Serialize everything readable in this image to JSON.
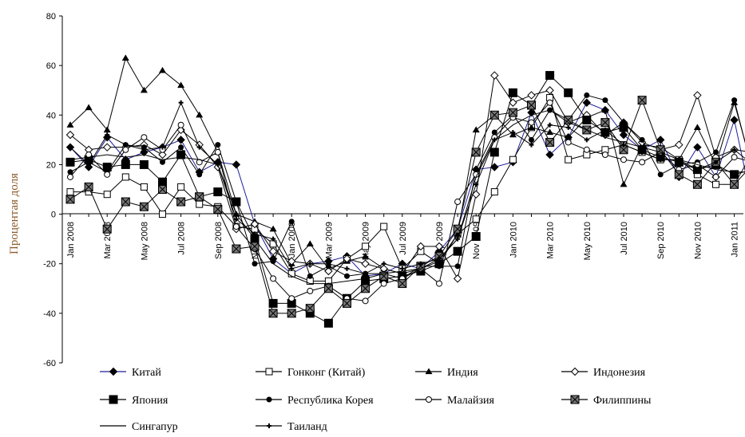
{
  "chart_data": {
    "type": "line",
    "ylabel": "Процентая доля",
    "ylim": [
      -60,
      80
    ],
    "yticks": [
      "80",
      "60",
      "40",
      "20",
      "0",
      "-20",
      "-40",
      "-60"
    ],
    "x": [
      "Jan 2008",
      "Feb 2008",
      "Mar 2008",
      "Apr 2008",
      "May 2008",
      "Jun 2008",
      "Jul 2008",
      "Aug 2008",
      "Sep 2008",
      "Oct 2008",
      "Nov 2008",
      "Dec 2008",
      "Jan 2009",
      "Feb 2009",
      "Mar 2009",
      "Apr 2009",
      "May 2009",
      "Jun 2009",
      "Jul 2009",
      "Aug 2009",
      "Sep 2009",
      "Oct 2009",
      "Nov 2009",
      "Dec 2009",
      "Jan 2010",
      "Feb 2010",
      "Mar 2010",
      "Apr 2010",
      "May 2010",
      "Jun 2010",
      "Jul 2010",
      "Aug 2010",
      "Sep 2010",
      "Oct 2010",
      "Nov 2010",
      "Dec 2010",
      "Jan 2011",
      "Feb 2011"
    ],
    "xticks": [
      "Jan 2008",
      "Mar 2008",
      "May 2008",
      "Jul 2008",
      "Sep 2008",
      "Nov 2008",
      "Jan 2009",
      "Mar 2009",
      "May 2009",
      "Jul 2009",
      "Sep 2009",
      "Nov 2009",
      "Jan 2010",
      "Mar 2010",
      "May 2010",
      "Jul 2010",
      "Sep 2010",
      "Nov 2010",
      "Jan 2011"
    ],
    "series": [
      {
        "name": "Китай",
        "color": "#1f1f99",
        "marker": "diamond-filled",
        "values": [
          27,
          19,
          31,
          22,
          25,
          27,
          30,
          17,
          21,
          20,
          -4,
          -18,
          -24,
          -20,
          -19,
          -17,
          -25,
          -24,
          -20,
          -22,
          -15,
          -6,
          18,
          19,
          21,
          41,
          24,
          31,
          45,
          42,
          32,
          26,
          30,
          15,
          27,
          15,
          38,
          3
        ]
      },
      {
        "name": "Гонконг (Китай)",
        "color": "#000000",
        "marker": "square-open",
        "values": [
          9,
          9,
          8,
          15,
          11,
          0,
          11,
          4,
          3,
          -5,
          -6,
          -12,
          -24,
          -27,
          -27,
          -18,
          -13,
          -5,
          -22,
          -15,
          -20,
          -8,
          -2,
          9,
          22,
          35,
          47,
          22,
          24,
          26,
          28,
          25,
          22,
          22,
          16,
          12,
          12,
          25
        ]
      },
      {
        "name": "Индия",
        "color": "#000000",
        "marker": "triangle-filled",
        "values": [
          36,
          43,
          34,
          63,
          50,
          58,
          52,
          40,
          25,
          0,
          -3,
          -6,
          -20,
          -12,
          -22,
          -19,
          -17,
          -22,
          -24,
          -22,
          -19,
          -8,
          34,
          40,
          32,
          35,
          33,
          31,
          39,
          42,
          12,
          28,
          27,
          22,
          35,
          20,
          45,
          18
        ]
      },
      {
        "name": "Индонезия",
        "color": "#000000",
        "marker": "diamond-open",
        "values": [
          32,
          26,
          27,
          27,
          28,
          24,
          34,
          28,
          19,
          -6,
          -4,
          -15,
          -19,
          -20,
          -23,
          -18,
          -20,
          -22,
          -24,
          -13,
          -13,
          -26,
          8,
          56,
          45,
          48,
          50,
          37,
          40,
          32,
          37,
          29,
          26,
          28,
          48,
          23,
          26,
          25
        ]
      },
      {
        "name": "Япония",
        "color": "#000000",
        "marker": "square-filled",
        "values": [
          21,
          22,
          19,
          20,
          20,
          13,
          24,
          7,
          9,
          5,
          -10,
          -36,
          -36,
          -40,
          -44,
          -34,
          -27,
          -26,
          -25,
          -23,
          -20,
          -15,
          -9,
          25,
          49,
          44,
          56,
          49,
          38,
          33,
          35,
          26,
          23,
          21,
          18,
          20,
          16,
          18
        ]
      },
      {
        "name": "Республика Корея",
        "color": "#000000",
        "marker": "circle-filled",
        "values": [
          17,
          21,
          17,
          28,
          27,
          21,
          27,
          16,
          28,
          5,
          -20,
          -19,
          -3,
          -25,
          -21,
          -25,
          -24,
          -24,
          -26,
          -21,
          -21,
          -21,
          18,
          33,
          40,
          30,
          42,
          38,
          48,
          46,
          37,
          30,
          16,
          20,
          21,
          25,
          46,
          17
        ]
      },
      {
        "name": "Малайзия",
        "color": "#000000",
        "marker": "circle-open",
        "values": [
          15,
          24,
          16,
          26,
          31,
          26,
          36,
          21,
          25,
          -5,
          -14,
          -26,
          -34,
          -31,
          -29,
          -34,
          -35,
          -28,
          -26,
          -22,
          -28,
          5,
          16,
          31,
          39,
          37,
          45,
          29,
          26,
          24,
          22,
          21,
          25,
          18,
          20,
          15,
          23,
          21
        ]
      },
      {
        "name": "Филиппины",
        "color": "#000000",
        "marker": "square-x",
        "values": [
          6,
          11,
          -6,
          5,
          3,
          10,
          5,
          7,
          2,
          -14,
          -13,
          -40,
          -40,
          -38,
          -30,
          -36,
          -30,
          -25,
          -28,
          -21,
          -17,
          -6,
          25,
          40,
          41,
          44,
          29,
          38,
          34,
          37,
          26,
          46,
          26,
          16,
          12,
          21,
          12,
          20
        ]
      },
      {
        "name": "Сингапур",
        "color": "#000000",
        "marker": "none",
        "values": [
          22,
          23,
          24,
          23,
          24,
          22,
          23,
          22,
          20,
          0,
          -10,
          -20,
          -25,
          -28,
          -28,
          -27,
          -26,
          -24,
          -23,
          -22,
          -18,
          -10,
          15,
          30,
          36,
          40,
          42,
          37,
          34,
          31,
          29,
          27,
          25,
          22,
          20,
          18,
          17,
          17
        ]
      },
      {
        "name": "Таиланд",
        "color": "#000000",
        "marker": "plus",
        "values": [
          27,
          20,
          32,
          28,
          26,
          27,
          45,
          27,
          20,
          -2,
          -8,
          -10,
          -22,
          -20,
          -20,
          -22,
          -24,
          -20,
          -22,
          -20,
          -18,
          -10,
          12,
          30,
          33,
          28,
          36,
          35,
          30,
          34,
          28,
          25,
          22,
          22,
          18,
          21,
          26,
          20
        ]
      }
    ]
  }
}
